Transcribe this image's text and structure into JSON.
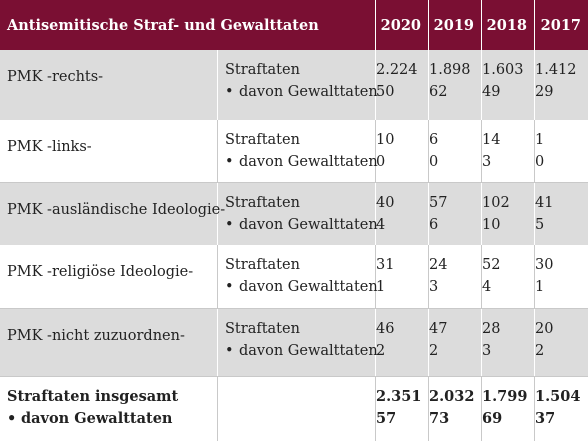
{
  "header": {
    "title": "Antisemitische Straf- und Gewalttaten",
    "years": [
      "2020",
      "2019",
      "2018",
      "2017"
    ]
  },
  "labels": {
    "straftaten": "Straftaten",
    "gewalttaten": "davon Gewalttaten",
    "bullet": "•"
  },
  "rows": [
    {
      "label": "PMK  -rechts-",
      "straftaten": [
        "2.224",
        "1.898",
        "1.603",
        "1.412"
      ],
      "gewalttaten": [
        "50",
        "62",
        "49",
        "29"
      ]
    },
    {
      "label": "PMK  -links-",
      "straftaten": [
        "10",
        "6",
        "14",
        "1"
      ],
      "gewalttaten": [
        "0",
        "0",
        "3",
        "0"
      ]
    },
    {
      "label": "PMK  -ausländische Ideologie-",
      "straftaten": [
        "40",
        "57",
        "102",
        "41"
      ],
      "gewalttaten": [
        "4",
        "6",
        "10",
        "5"
      ]
    },
    {
      "label": "PMK  -religiöse Ideologie-",
      "straftaten": [
        "31",
        "24",
        "52",
        "30"
      ],
      "gewalttaten": [
        "1",
        "3",
        "4",
        "1"
      ]
    },
    {
      "label": "PMK  -nicht zuzuordnen-",
      "straftaten": [
        "46",
        "47",
        "28",
        "20"
      ],
      "gewalttaten": [
        "2",
        "2",
        "3",
        "2"
      ]
    }
  ],
  "total": {
    "label": "Straftaten insgesamt",
    "sublabel": "davon Gewalttaten",
    "straftaten": [
      "2.351",
      "2.032",
      "1.799",
      "1.504"
    ],
    "gewalttaten": [
      "57",
      "73",
      "69",
      "37"
    ]
  }
}
